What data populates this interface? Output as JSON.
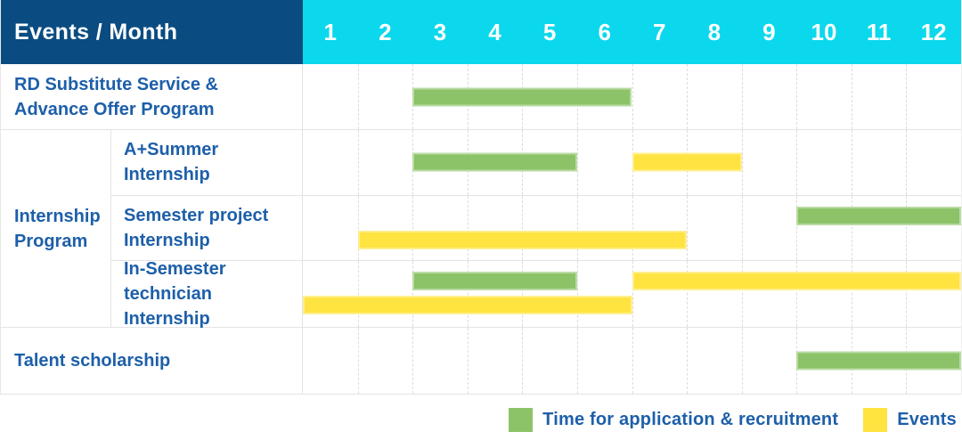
{
  "header": {
    "title": "Events / Month",
    "months": [
      "1",
      "2",
      "3",
      "4",
      "5",
      "6",
      "7",
      "8",
      "9",
      "10",
      "11",
      "12"
    ]
  },
  "colors": {
    "header_navy": "#0a4c81",
    "header_cyan": "#0bd8ec",
    "green": "#8cc368",
    "yellow": "#ffe441",
    "label_text": "#1d5fa9",
    "grid_border": "#e3e3e3",
    "gridline": "#dcdcdc"
  },
  "rows": [
    {
      "label": "RD Substitute Service &\nAdvance Offer Program",
      "lines": [
        [
          {
            "kind": "green",
            "start": 3,
            "end": 6
          }
        ]
      ]
    },
    {
      "group": "Internship\nProgram",
      "label": "A+Summer\nInternship",
      "lines": [
        [
          {
            "kind": "green",
            "start": 3,
            "end": 5
          },
          {
            "kind": "yellow",
            "start": 7,
            "end": 8
          }
        ]
      ]
    },
    {
      "label": "Semester project\nInternship",
      "lines": [
        [
          {
            "kind": "green",
            "start": 10,
            "end": 12
          }
        ],
        [
          {
            "kind": "yellow",
            "start": 2,
            "end": 7
          }
        ]
      ]
    },
    {
      "label": "In-Semester\ntechnician Internship",
      "lines": [
        [
          {
            "kind": "green",
            "start": 3,
            "end": 5
          },
          {
            "kind": "yellow",
            "start": 7,
            "end": 12
          }
        ],
        [
          {
            "kind": "yellow",
            "start": 1,
            "end": 6
          }
        ]
      ]
    },
    {
      "label": "Talent scholarship",
      "lines": [
        [
          {
            "kind": "green",
            "start": 10,
            "end": 12
          }
        ]
      ]
    }
  ],
  "legend": [
    {
      "kind": "green",
      "label": "Time for application & recruitment"
    },
    {
      "kind": "yellow",
      "label": "Events"
    }
  ],
  "chart_data": {
    "type": "bar",
    "subtype": "gantt",
    "title": "Events / Month",
    "x_unit": "month",
    "x_range": [
      1,
      12
    ],
    "x_ticks": [
      "1",
      "2",
      "3",
      "4",
      "5",
      "6",
      "7",
      "8",
      "9",
      "10",
      "11",
      "12"
    ],
    "categories": [
      "RD Substitute Service & Advance Offer Program",
      "Internship Program / A+Summer Internship",
      "Internship Program / Semester project Internship",
      "Internship Program / In-Semester technician Internship",
      "Talent scholarship"
    ],
    "series": [
      {
        "name": "Time for application & recruitment",
        "color": "#8cc368",
        "spans": [
          {
            "category": "RD Substitute Service & Advance Offer Program",
            "start_month": 3,
            "end_month": 6
          },
          {
            "category": "Internship Program / A+Summer Internship",
            "start_month": 3,
            "end_month": 5
          },
          {
            "category": "Internship Program / Semester project Internship",
            "start_month": 10,
            "end_month": 12
          },
          {
            "category": "Internship Program / In-Semester technician Internship",
            "start_month": 3,
            "end_month": 5
          },
          {
            "category": "Talent scholarship",
            "start_month": 10,
            "end_month": 12
          }
        ]
      },
      {
        "name": "Events",
        "color": "#ffe441",
        "spans": [
          {
            "category": "Internship Program / A+Summer Internship",
            "start_month": 7,
            "end_month": 8
          },
          {
            "category": "Internship Program / Semester project Internship",
            "start_month": 2,
            "end_month": 7
          },
          {
            "category": "Internship Program / In-Semester technician Internship",
            "start_month": 7,
            "end_month": 12
          },
          {
            "category": "Internship Program / In-Semester technician Internship",
            "start_month": 1,
            "end_month": 6
          }
        ]
      }
    ],
    "legend_position": "bottom-right",
    "grid": "dashed-vertical"
  }
}
